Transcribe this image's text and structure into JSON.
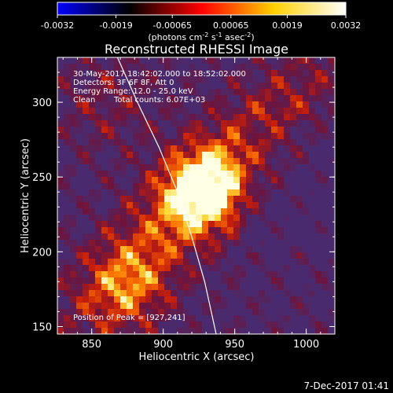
{
  "chart_data": {
    "type": "heatmap",
    "title": "Reconstructed RHESSI Image",
    "xlabel": "Heliocentric X (arcsec)",
    "ylabel": "Heliocentric Y (arcsec)",
    "xlim": [
      826,
      1020
    ],
    "ylim": [
      145,
      330
    ],
    "x_ticks": [
      "850",
      "900",
      "950",
      "1000"
    ],
    "y_ticks": [
      "150",
      "200",
      "250",
      "300"
    ],
    "colorbar": {
      "min": -0.0032,
      "max": 0.0032,
      "tick_labels": [
        "-0.0032",
        "-0.0019",
        "-0.00065",
        "0.00065",
        "0.0019",
        "0.0032"
      ],
      "unit_label_parts": [
        "(photons cm",
        "-2",
        " s",
        "-1",
        " asec",
        "-2",
        ")"
      ],
      "colormap": [
        "#0000ff",
        "#000000",
        "#ff0000",
        "#ffd000",
        "#ffffff"
      ]
    },
    "annotations": {
      "time_range": "30-May-2017 18:42:02.000 to 18:52:02.000",
      "detectors": "Detectors: 3F 6F 8F, Att 0",
      "energy": "Energy Range: 12.0 - 25.0 keV",
      "clean_label": "Clean",
      "total_counts": "Total counts: 6.07E+03",
      "peak": "Position of Peak = [927,241]"
    },
    "peak_position": [
      927,
      241
    ],
    "limb_curve": [
      [
        868,
        330
      ],
      [
        882,
        300
      ],
      [
        897,
        270
      ],
      [
        910,
        240
      ],
      [
        920,
        210
      ],
      [
        929,
        180
      ],
      [
        937,
        145
      ]
    ],
    "timestamp": "7-Dec-2017 01:41"
  }
}
